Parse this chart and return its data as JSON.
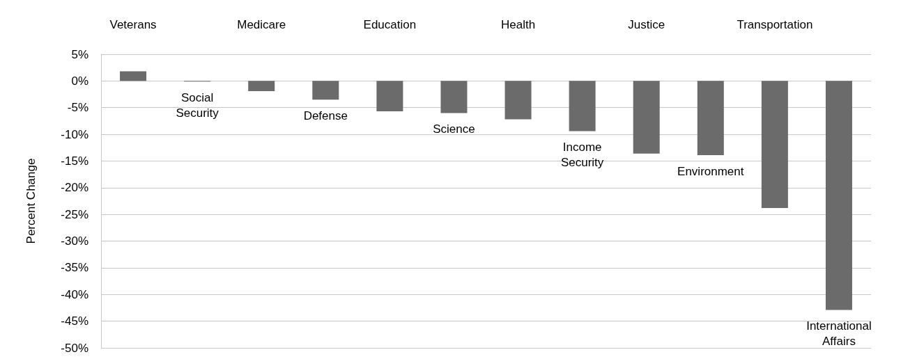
{
  "chart_data": {
    "type": "bar",
    "ylabel": "Percent Change",
    "categories": [
      "Veterans",
      "Social Security",
      "Medicare",
      "Defense",
      "Education",
      "Science",
      "Health",
      "Income Security",
      "Justice",
      "Environment",
      "Transportation",
      "International Affairs"
    ],
    "values": [
      1.8,
      -0.1,
      -1.9,
      -3.5,
      -5.7,
      -6.0,
      -7.2,
      -9.4,
      -13.6,
      -13.9,
      -23.8,
      -42.9
    ],
    "color": "#6b6b6b",
    "ylim": [
      -50,
      5
    ],
    "yticks": [
      {
        "value": 5,
        "label": "5%"
      },
      {
        "value": 0,
        "label": "0%"
      },
      {
        "value": -5,
        "label": "-5%"
      },
      {
        "value": -10,
        "label": "-10%"
      },
      {
        "value": -15,
        "label": "-15%"
      },
      {
        "value": -20,
        "label": "-20%"
      },
      {
        "value": -25,
        "label": "-25%"
      },
      {
        "value": -30,
        "label": "-30%"
      },
      {
        "value": -35,
        "label": "-35%"
      },
      {
        "value": -40,
        "label": "-40%"
      },
      {
        "value": -45,
        "label": "-45%"
      },
      {
        "value": -50,
        "label": "-50%"
      }
    ],
    "grid": "y"
  }
}
